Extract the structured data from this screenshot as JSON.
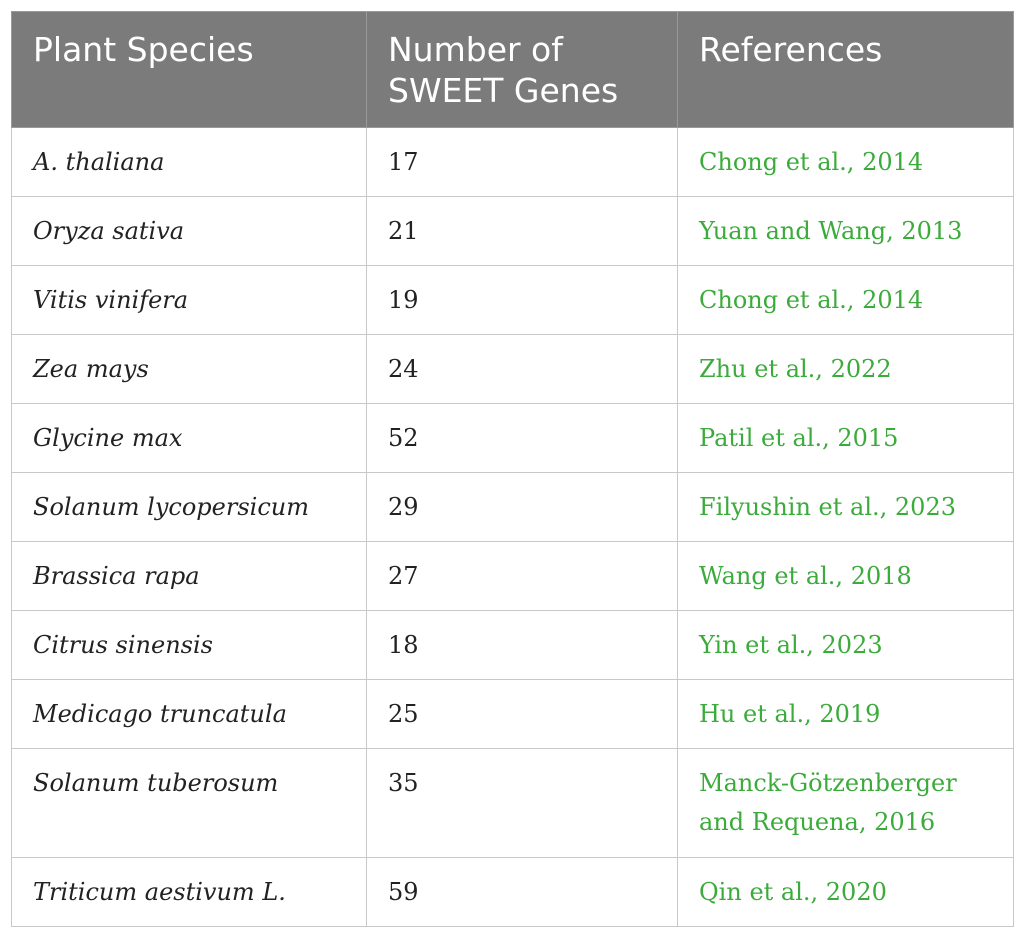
{
  "table": {
    "headers": [
      "Plant Species",
      "Number of SWEET Genes",
      "References"
    ],
    "rows": [
      {
        "species": "A. thaliana",
        "count": "17",
        "reference": "Chong et al., 2014"
      },
      {
        "species": "Oryza sativa",
        "count": "21",
        "reference": "Yuan and Wang, 2013"
      },
      {
        "species": "Vitis vinifera",
        "count": "19",
        "reference": "Chong et al., 2014"
      },
      {
        "species": "Zea mays",
        "count": "24",
        "reference": "Zhu et al., 2022"
      },
      {
        "species": "Glycine max",
        "count": "52",
        "reference": "Patil et al., 2015"
      },
      {
        "species": "Solanum lycopersicum",
        "count": "29",
        "reference": "Filyushin et al., 2023"
      },
      {
        "species": "Brassica rapa",
        "count": "27",
        "reference": "Wang et al., 2018"
      },
      {
        "species": "Citrus sinensis",
        "count": "18",
        "reference": "Yin et al., 2023"
      },
      {
        "species": "Medicago truncatula",
        "count": "25",
        "reference": "Hu et al., 2019"
      },
      {
        "species": "Solanum tuberosum",
        "count": "35",
        "reference": "Manck-Götzenberger and Requena, 2016"
      },
      {
        "species": "Triticum aestivum L.",
        "count": "59",
        "reference": "Qin et al., 2020"
      }
    ]
  },
  "colors": {
    "header_bg": "#7b7b7b",
    "header_text": "#ffffff",
    "reference_link": "#3bab3b",
    "border": "#c8c8c8"
  }
}
